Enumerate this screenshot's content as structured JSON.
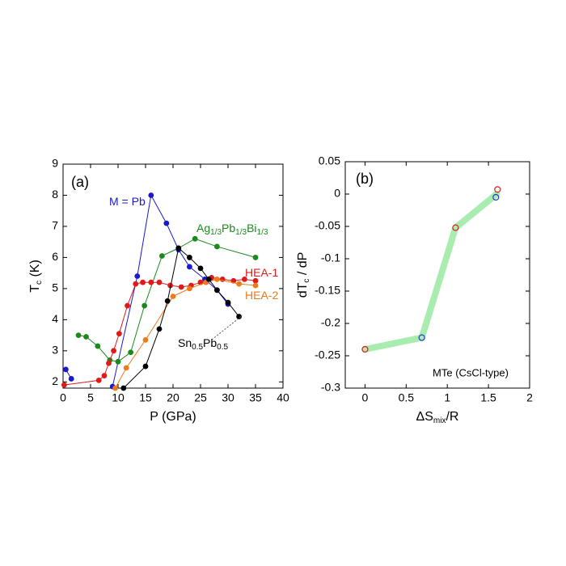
{
  "chart_data": [
    {
      "type": "line",
      "label": "(a)",
      "xlabel": [
        "P (GPa)"
      ],
      "ylabel": [
        "T",
        "c",
        " (K)"
      ],
      "xlim": [
        0,
        40
      ],
      "ylim": [
        1.8,
        9
      ],
      "xticks": [
        0,
        5,
        10,
        15,
        20,
        25,
        30,
        35,
        40
      ],
      "yticks": [
        2,
        3,
        4,
        5,
        6,
        7,
        8,
        9
      ],
      "series": [
        {
          "name": [
            "M = Pb"
          ],
          "color": "#1a1acc",
          "linewidth": 1,
          "x": [
            0.5,
            1.5,
            null,
            9,
            13.5,
            16,
            18.8,
            21,
            23,
            25.8,
            28,
            30
          ],
          "values": [
            2.4,
            2.1,
            null,
            1.85,
            5.4,
            8.0,
            7.1,
            6.25,
            5.7,
            5.3,
            4.95,
            4.5
          ]
        },
        {
          "name": [
            "Ag",
            "1/3",
            "Pb",
            "1/3",
            "Bi",
            "1/3"
          ],
          "color": "#1a8a1a",
          "linewidth": 1,
          "x": [
            2.8,
            4.2,
            6.3,
            8.5,
            10,
            12.3,
            14.8,
            18,
            21,
            24,
            28,
            35
          ],
          "values": [
            3.5,
            3.45,
            3.15,
            2.7,
            2.65,
            2.95,
            4.45,
            6.05,
            6.3,
            6.6,
            6.35,
            6.0
          ]
        },
        {
          "name": [
            "HEA-1"
          ],
          "color": "#e01a1a",
          "linewidth": 1,
          "x": [
            0.2,
            6.5,
            7.5,
            8.3,
            9.2,
            10.2,
            11.7,
            13.2,
            14.5,
            16,
            17.5,
            19.5,
            21.5,
            23.3,
            25,
            27,
            29,
            31,
            33,
            35
          ],
          "values": [
            1.9,
            2.05,
            2.2,
            2.6,
            3.0,
            3.55,
            4.45,
            5.15,
            5.2,
            5.2,
            5.2,
            5.1,
            5.05,
            5.1,
            5.2,
            5.35,
            5.3,
            5.25,
            5.3,
            5.25
          ]
        },
        {
          "name": [
            "HEA-2"
          ],
          "color": "#ee7a1a",
          "linewidth": 1,
          "x": [
            9.5,
            11.5,
            15,
            20,
            23,
            26,
            28,
            32,
            35
          ],
          "values": [
            1.8,
            2.45,
            3.35,
            4.75,
            5.0,
            5.2,
            5.3,
            5.15,
            5.1
          ]
        },
        {
          "name": [
            "Sn",
            "0.5",
            "Pb",
            "0.5"
          ],
          "color": "#000000",
          "linewidth": 1,
          "x": [
            11,
            15,
            17.5,
            19,
            21,
            23,
            25,
            26.5,
            28,
            30,
            32
          ],
          "values": [
            1.8,
            2.5,
            3.7,
            4.6,
            6.3,
            6.0,
            5.65,
            5.3,
            4.95,
            4.55,
            4.1
          ]
        }
      ]
    },
    {
      "type": "line",
      "label": "(b)",
      "annotation": "MTe (CsCl-type)",
      "xlabel": [
        "ΔS",
        "mix",
        "/R"
      ],
      "ylabel": [
        "dT",
        "c",
        " / dP"
      ],
      "xlim": [
        -0.24,
        2
      ],
      "ylim": [
        -0.3,
        0.05
      ],
      "xticks": [
        0,
        0.5,
        1,
        1.5,
        2
      ],
      "yticks": [
        -0.3,
        -0.25,
        -0.2,
        -0.15,
        -0.1,
        -0.05,
        0,
        0.05
      ],
      "series": [
        {
          "color": "#a8ecb0",
          "linewidth": 8,
          "x": [
            0,
            0.69,
            1.1,
            1.6
          ],
          "values": [
            -0.24,
            -0.222,
            -0.052,
            0
          ]
        },
        {
          "color": "#d42020",
          "linewidth": 0,
          "x": [
            0,
            1.1,
            1.61
          ],
          "values": [
            -0.24,
            -0.052,
            0.007
          ]
        },
        {
          "color": "#2040c0",
          "linewidth": 0,
          "x": [
            0.69,
            1.59
          ],
          "values": [
            -0.222,
            -0.005
          ]
        }
      ]
    }
  ]
}
